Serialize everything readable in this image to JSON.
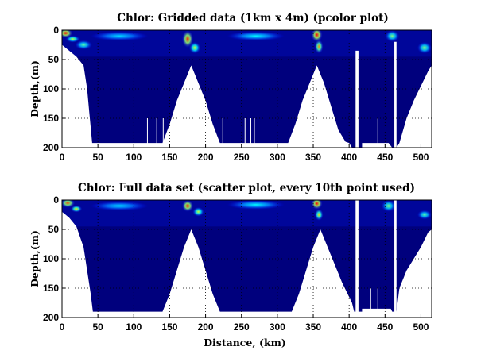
{
  "chart_data": [
    {
      "type": "heatmap",
      "title": "Chlor: Gridded data (1km x 4m) (pcolor plot)",
      "xlabel": "",
      "ylabel": "Depth,(m)",
      "xlim": [
        0,
        515
      ],
      "ylim": [
        200,
        0
      ],
      "x_ticks": [
        0,
        50,
        100,
        150,
        200,
        250,
        300,
        350,
        400,
        450,
        500
      ],
      "y_ticks": [
        0,
        50,
        100,
        150,
        200
      ],
      "grid": true,
      "colormap": [
        "#00008f",
        "#0000ff",
        "#00ffff",
        "#ffff00",
        "#ff0000"
      ],
      "background_color": "#00007d",
      "bottom_profile": [
        [
          0,
          25
        ],
        [
          10,
          35
        ],
        [
          20,
          45
        ],
        [
          30,
          60
        ],
        [
          35,
          100
        ],
        [
          38,
          140
        ],
        [
          42,
          192
        ],
        [
          140,
          192
        ],
        [
          150,
          160
        ],
        [
          160,
          120
        ],
        [
          170,
          90
        ],
        [
          180,
          60
        ],
        [
          190,
          90
        ],
        [
          200,
          120
        ],
        [
          210,
          160
        ],
        [
          220,
          192
        ],
        [
          315,
          192
        ],
        [
          325,
          160
        ],
        [
          335,
          120
        ],
        [
          345,
          90
        ],
        [
          355,
          60
        ],
        [
          365,
          90
        ],
        [
          375,
          130
        ],
        [
          385,
          170
        ],
        [
          395,
          190
        ],
        [
          400,
          192
        ],
        [
          404,
          200
        ],
        [
          409,
          200
        ],
        [
          409,
          35
        ],
        [
          413,
          35
        ],
        [
          413,
          200
        ],
        [
          418,
          200
        ],
        [
          418,
          192
        ],
        [
          455,
          192
        ],
        [
          460,
          200
        ],
        [
          463,
          200
        ],
        [
          463,
          20
        ],
        [
          466,
          20
        ],
        [
          466,
          200
        ],
        [
          470,
          192
        ],
        [
          480,
          150
        ],
        [
          490,
          120
        ],
        [
          500,
          95
        ],
        [
          510,
          70
        ],
        [
          515,
          60
        ]
      ],
      "white_lines": [
        119,
        132,
        141,
        224,
        255,
        263,
        268,
        342,
        348,
        440
      ],
      "hotspots": [
        [
          5,
          5,
          10,
          8,
          1.0
        ],
        [
          15,
          15,
          10,
          6,
          0.6
        ],
        [
          30,
          25,
          12,
          8,
          0.45
        ],
        [
          175,
          15,
          8,
          15,
          0.95
        ],
        [
          185,
          30,
          8,
          10,
          0.6
        ],
        [
          355,
          8,
          8,
          12,
          1.0
        ],
        [
          358,
          28,
          6,
          12,
          0.8
        ],
        [
          460,
          10,
          10,
          10,
          0.5
        ],
        [
          505,
          30,
          10,
          10,
          0.5
        ],
        [
          80,
          10,
          40,
          8,
          0.3
        ],
        [
          270,
          10,
          40,
          8,
          0.35
        ]
      ]
    },
    {
      "type": "scatter",
      "title": "Chlor: Full data set (scatter plot, every 10th point used)",
      "xlabel": "Distance, (km)",
      "ylabel": "Depth,(m)",
      "xlim": [
        0,
        515
      ],
      "ylim": [
        200,
        0
      ],
      "x_ticks": [
        0,
        50,
        100,
        150,
        200,
        250,
        300,
        350,
        400,
        450,
        500
      ],
      "y_ticks": [
        0,
        50,
        100,
        150,
        200
      ],
      "grid": true,
      "colormap": [
        "#00008f",
        "#0000ff",
        "#00ffff",
        "#ffff00",
        "#ff0000"
      ],
      "background_color": "#00007d",
      "bottom_profile": [
        [
          0,
          20
        ],
        [
          10,
          30
        ],
        [
          20,
          45
        ],
        [
          30,
          80
        ],
        [
          35,
          120
        ],
        [
          40,
          160
        ],
        [
          43,
          190
        ],
        [
          140,
          190
        ],
        [
          150,
          160
        ],
        [
          160,
          120
        ],
        [
          170,
          80
        ],
        [
          180,
          50
        ],
        [
          190,
          80
        ],
        [
          200,
          120
        ],
        [
          210,
          160
        ],
        [
          220,
          190
        ],
        [
          320,
          190
        ],
        [
          330,
          160
        ],
        [
          340,
          120
        ],
        [
          350,
          80
        ],
        [
          360,
          50
        ],
        [
          370,
          80
        ],
        [
          380,
          110
        ],
        [
          390,
          140
        ],
        [
          400,
          165
        ],
        [
          404,
          175
        ],
        [
          407,
          190
        ],
        [
          409,
          190
        ],
        [
          409,
          0
        ],
        [
          413,
          0
        ],
        [
          413,
          190
        ],
        [
          418,
          190
        ],
        [
          418,
          185
        ],
        [
          458,
          185
        ],
        [
          460,
          190
        ],
        [
          463,
          190
        ],
        [
          463,
          0
        ],
        [
          466,
          0
        ],
        [
          466,
          190
        ],
        [
          470,
          150
        ],
        [
          480,
          120
        ],
        [
          490,
          100
        ],
        [
          500,
          80
        ],
        [
          510,
          55
        ],
        [
          515,
          50
        ]
      ],
      "white_lines": [
        430,
        440
      ],
      "hotspots": [
        [
          8,
          5,
          10,
          8,
          0.9
        ],
        [
          20,
          15,
          8,
          6,
          0.7
        ],
        [
          175,
          10,
          8,
          10,
          0.95
        ],
        [
          190,
          20,
          8,
          8,
          0.6
        ],
        [
          355,
          6,
          8,
          10,
          1.0
        ],
        [
          358,
          25,
          6,
          10,
          0.7
        ],
        [
          455,
          10,
          10,
          10,
          0.5
        ],
        [
          505,
          25,
          10,
          8,
          0.45
        ],
        [
          80,
          10,
          40,
          8,
          0.3
        ],
        [
          270,
          8,
          40,
          8,
          0.35
        ]
      ]
    }
  ]
}
